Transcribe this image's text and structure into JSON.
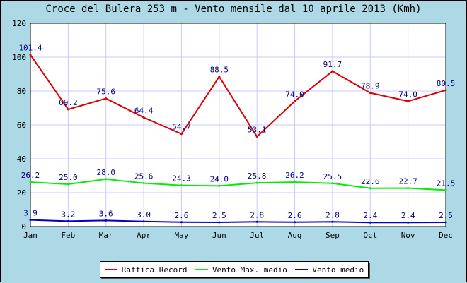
{
  "chart_data": {
    "type": "line",
    "title": "Croce del Bulera 253 m - Vento mensile dal 10 aprile 2013 (Kmh)",
    "categories": [
      "Jan",
      "Feb",
      "Mar",
      "Apr",
      "May",
      "Jun",
      "Jul",
      "Aug",
      "Sep",
      "Oct",
      "Nov",
      "Dec"
    ],
    "ylim": [
      0,
      120
    ],
    "yticks": [
      0,
      20,
      40,
      60,
      80,
      100,
      120
    ],
    "grid": true,
    "legend_position": "bottom",
    "series": [
      {
        "name": "Raffica Record",
        "color": "#dd0000",
        "values": [
          101.4,
          69.2,
          75.6,
          64.4,
          54.7,
          88.5,
          53.1,
          74.0,
          91.7,
          78.9,
          74.0,
          80.5
        ],
        "labels": [
          "101.4",
          "69.2",
          "75.6",
          "64.4",
          "54.7",
          "88.5",
          "53.1",
          "74.0",
          "91.7",
          "78.9",
          "74.0",
          "80.5"
        ]
      },
      {
        "name": "Vento Max. medio",
        "color": "#00ee00",
        "values": [
          26.2,
          25.0,
          28.0,
          25.6,
          24.3,
          24.0,
          25.8,
          26.2,
          25.5,
          22.6,
          22.7,
          21.5
        ],
        "labels": [
          "26.2",
          "25.0",
          "28.0",
          "25.6",
          "24.3",
          "24.0",
          "25.8",
          "26.2",
          "25.5",
          "22.6",
          "22.7",
          "21.5"
        ]
      },
      {
        "name": "Vento medio",
        "color": "#0000cc",
        "values": [
          3.9,
          3.2,
          3.6,
          3.0,
          2.6,
          2.5,
          2.8,
          2.6,
          2.8,
          2.4,
          2.4,
          2.5
        ],
        "labels": [
          "3.9",
          "3.2",
          "3.6",
          "3.0",
          "2.6",
          "2.5",
          "2.8",
          "2.6",
          "2.8",
          "2.4",
          "2.4",
          "2.5"
        ]
      }
    ]
  },
  "colors": {
    "background": "#add8e6",
    "plot_background": "#ffffff",
    "grid": "#c8c8ff",
    "data_label": "#000080"
  }
}
